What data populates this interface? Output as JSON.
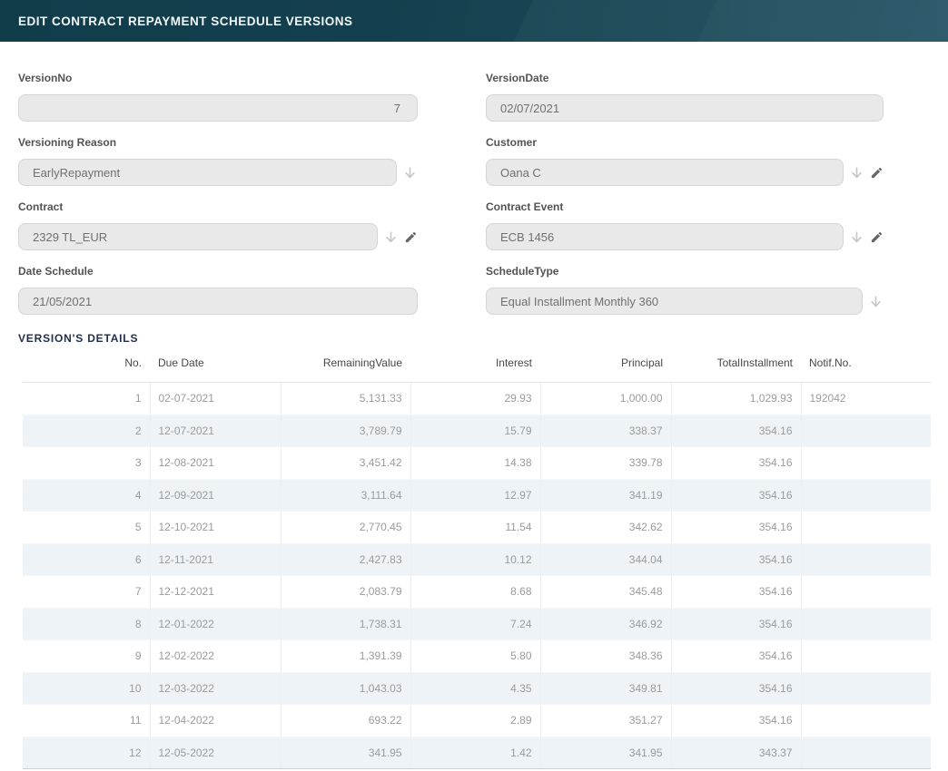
{
  "header": {
    "title": "EDIT CONTRACT REPAYMENT SCHEDULE VERSIONS"
  },
  "icons": {
    "dropdown": "arrow-down-icon",
    "edit": "pencil-icon"
  },
  "colors": {
    "titlebar_teal": "#153f4e",
    "input_bg": "#e9e9e9",
    "stripe_blue": "#eef3f7",
    "section_title_navy": "#22304e"
  },
  "form": {
    "fields": [
      {
        "label": "VersionNo",
        "value": "7"
      },
      {
        "label": "VersionDate",
        "value": "02/07/2021"
      },
      {
        "label": "Versioning Reason",
        "value": "EarlyRepayment"
      },
      {
        "label": "Customer",
        "value": "Oana C"
      },
      {
        "label": "Contract",
        "value": "2329 TL_EUR"
      },
      {
        "label": "Contract Event",
        "value": "ECB 1456"
      },
      {
        "label": "Date Schedule",
        "value": "21/05/2021"
      },
      {
        "label": "ScheduleType",
        "value": "Equal Installment Monthly 360"
      }
    ]
  },
  "details": {
    "section_title": "VERSION'S DETAILS",
    "columns": [
      "No.",
      "Due Date",
      "RemainingValue",
      "Interest",
      "Principal",
      "TotalInstallment",
      "Notif.No."
    ],
    "rows": [
      [
        "1",
        "02-07-2021",
        "5,131.33",
        "29.93",
        "1,000.00",
        "1,029.93",
        "192042"
      ],
      [
        "2",
        "12-07-2021",
        "3,789.79",
        "15.79",
        "338.37",
        "354.16",
        ""
      ],
      [
        "3",
        "12-08-2021",
        "3,451.42",
        "14.38",
        "339.78",
        "354.16",
        ""
      ],
      [
        "4",
        "12-09-2021",
        "3,111.64",
        "12.97",
        "341.19",
        "354.16",
        ""
      ],
      [
        "5",
        "12-10-2021",
        "2,770.45",
        "11.54",
        "342.62",
        "354.16",
        ""
      ],
      [
        "6",
        "12-11-2021",
        "2,427.83",
        "10.12",
        "344.04",
        "354.16",
        ""
      ],
      [
        "7",
        "12-12-2021",
        "2,083.79",
        "8.68",
        "345.48",
        "354.16",
        ""
      ],
      [
        "8",
        "12-01-2022",
        "1,738.31",
        "7.24",
        "346.92",
        "354.16",
        ""
      ],
      [
        "9",
        "12-02-2022",
        "1,391.39",
        "5.80",
        "348.36",
        "354.16",
        ""
      ],
      [
        "10",
        "12-03-2022",
        "1,043.03",
        "4.35",
        "349.81",
        "354.16",
        ""
      ],
      [
        "11",
        "12-04-2022",
        "693.22",
        "2.89",
        "351.27",
        "354.16",
        ""
      ],
      [
        "12",
        "12-05-2022",
        "341.95",
        "1.42",
        "341.95",
        "343.37",
        ""
      ]
    ]
  }
}
